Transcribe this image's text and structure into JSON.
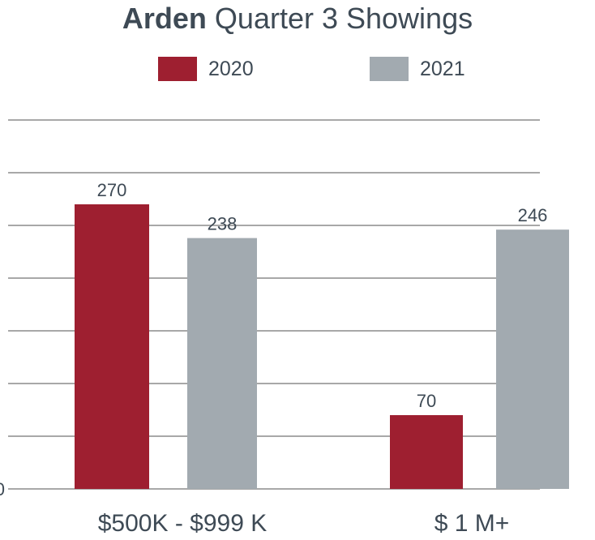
{
  "colors": {
    "series_2020": "#9e1f30",
    "series_2021": "#a2aab0",
    "grid": "#8c8c8c",
    "text": "#3e4a55"
  },
  "chart_data": {
    "type": "bar",
    "title_bold": "Arden",
    "title_rest": "Quarter 3 Showings",
    "categories": [
      "$500K - $999 K",
      "$ 1 M+"
    ],
    "series": [
      {
        "name": "2020",
        "values": [
          270,
          70
        ]
      },
      {
        "name": "2021",
        "values": [
          238,
          246
        ]
      }
    ],
    "value_labels": [
      [
        "270",
        "70"
      ],
      [
        "238",
        "246"
      ]
    ],
    "y_tick_label_visible": "0",
    "ylim": [
      0,
      400
    ],
    "grid": true,
    "legend": "top-center"
  }
}
